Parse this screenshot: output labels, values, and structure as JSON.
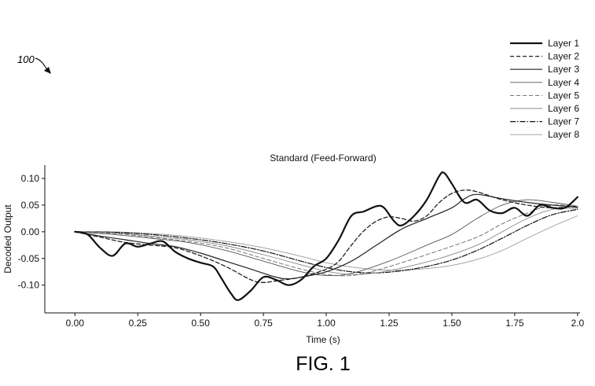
{
  "figure": {
    "reference_numeral": "100",
    "caption": "FIG. 1"
  },
  "chart_data": {
    "type": "line",
    "title": "Standard (Feed-Forward)",
    "xlabel": "Time (s)",
    "ylabel": "Decoded Output",
    "xlim": [
      -0.12,
      2.01
    ],
    "ylim": [
      -0.152,
      0.125
    ],
    "xticks": [
      0.0,
      0.25,
      0.5,
      0.75,
      1.0,
      1.25,
      1.5,
      1.75,
      2.0
    ],
    "xtick_labels": [
      "0.00",
      "0.25",
      "0.50",
      "0.75",
      "1.00",
      "1.25",
      "1.50",
      "1.75",
      "2.0"
    ],
    "yticks": [
      0.1,
      0.05,
      0.0,
      -0.05,
      -0.1
    ],
    "ytick_labels": [
      "0.10",
      "0.05",
      "0.00",
      "-0.05",
      "-0.10"
    ],
    "grid": false,
    "legend": "top-right",
    "series": [
      {
        "name": "Layer 1",
        "style": "solid",
        "width": 2.2,
        "color": "#111111",
        "x": [
          0.0,
          0.05,
          0.1,
          0.15,
          0.2,
          0.25,
          0.3,
          0.35,
          0.4,
          0.45,
          0.5,
          0.55,
          0.58,
          0.62,
          0.65,
          0.7,
          0.75,
          0.8,
          0.85,
          0.9,
          0.95,
          1.0,
          1.05,
          1.1,
          1.15,
          1.2,
          1.23,
          1.27,
          1.3,
          1.35,
          1.4,
          1.45,
          1.47,
          1.5,
          1.55,
          1.6,
          1.65,
          1.7,
          1.75,
          1.8,
          1.85,
          1.9,
          1.95,
          2.0
        ],
        "y": [
          0.0,
          -0.005,
          -0.03,
          -0.045,
          -0.022,
          -0.028,
          -0.022,
          -0.018,
          -0.038,
          -0.05,
          -0.058,
          -0.065,
          -0.085,
          -0.115,
          -0.128,
          -0.11,
          -0.085,
          -0.09,
          -0.1,
          -0.09,
          -0.065,
          -0.05,
          -0.015,
          0.03,
          0.038,
          0.048,
          0.045,
          0.02,
          0.012,
          0.03,
          0.06,
          0.105,
          0.11,
          0.09,
          0.055,
          0.06,
          0.04,
          0.035,
          0.045,
          0.03,
          0.05,
          0.045,
          0.045,
          0.065
        ]
      },
      {
        "name": "Layer 2",
        "style": "dashed",
        "width": 1.3,
        "color": "#222222",
        "x": [
          0.0,
          0.1,
          0.2,
          0.3,
          0.4,
          0.5,
          0.6,
          0.7,
          0.75,
          0.8,
          0.9,
          1.0,
          1.05,
          1.1,
          1.15,
          1.2,
          1.25,
          1.3,
          1.35,
          1.4,
          1.45,
          1.5,
          1.55,
          1.6,
          1.7,
          1.8,
          1.9,
          2.0
        ],
        "y": [
          0.0,
          -0.01,
          -0.02,
          -0.025,
          -0.03,
          -0.045,
          -0.065,
          -0.09,
          -0.095,
          -0.092,
          -0.085,
          -0.07,
          -0.055,
          -0.025,
          0.002,
          0.02,
          0.028,
          0.025,
          0.02,
          0.03,
          0.055,
          0.072,
          0.078,
          0.075,
          0.06,
          0.05,
          0.045,
          0.048
        ]
      },
      {
        "name": "Layer 3",
        "style": "solid",
        "width": 1.2,
        "color": "#222222",
        "x": [
          0.0,
          0.1,
          0.2,
          0.3,
          0.4,
          0.5,
          0.6,
          0.7,
          0.8,
          0.85,
          0.9,
          1.0,
          1.1,
          1.2,
          1.3,
          1.4,
          1.5,
          1.55,
          1.6,
          1.7,
          1.8,
          1.9,
          2.0
        ],
        "y": [
          0.0,
          -0.008,
          -0.015,
          -0.022,
          -0.028,
          -0.04,
          -0.055,
          -0.07,
          -0.085,
          -0.088,
          -0.085,
          -0.075,
          -0.055,
          -0.025,
          0.005,
          0.025,
          0.045,
          0.062,
          0.07,
          0.062,
          0.055,
          0.05,
          0.046
        ]
      },
      {
        "name": "Layer 4",
        "style": "solid",
        "width": 0.9,
        "color": "#555555",
        "x": [
          0.0,
          0.15,
          0.3,
          0.45,
          0.6,
          0.75,
          0.9,
          1.0,
          1.1,
          1.25,
          1.4,
          1.5,
          1.6,
          1.7,
          1.8,
          1.9,
          2.0
        ],
        "y": [
          0.0,
          -0.005,
          -0.012,
          -0.02,
          -0.035,
          -0.055,
          -0.075,
          -0.082,
          -0.078,
          -0.055,
          -0.025,
          -0.005,
          0.025,
          0.05,
          0.06,
          0.055,
          0.048
        ]
      },
      {
        "name": "Layer 5",
        "style": "dashed",
        "width": 0.9,
        "color": "#666666",
        "x": [
          0.0,
          0.15,
          0.3,
          0.45,
          0.6,
          0.75,
          0.9,
          1.0,
          1.1,
          1.2,
          1.3,
          1.45,
          1.6,
          1.7,
          1.8,
          1.9,
          2.0
        ],
        "y": [
          0.0,
          -0.003,
          -0.01,
          -0.018,
          -0.03,
          -0.05,
          -0.07,
          -0.08,
          -0.082,
          -0.072,
          -0.058,
          -0.035,
          -0.01,
          0.015,
          0.035,
          0.05,
          0.046
        ]
      },
      {
        "name": "Layer 6",
        "style": "solid",
        "width": 0.9,
        "color": "#888888",
        "x": [
          0.0,
          0.15,
          0.3,
          0.45,
          0.6,
          0.75,
          0.9,
          1.0,
          1.1,
          1.2,
          1.3,
          1.45,
          1.6,
          1.7,
          1.8,
          1.9,
          2.0
        ],
        "y": [
          0.0,
          -0.002,
          -0.008,
          -0.015,
          -0.026,
          -0.043,
          -0.062,
          -0.074,
          -0.08,
          -0.077,
          -0.068,
          -0.05,
          -0.025,
          0.0,
          0.025,
          0.042,
          0.044
        ]
      },
      {
        "name": "Layer 7",
        "style": "dashdot",
        "width": 1.2,
        "color": "#111111",
        "x": [
          0.0,
          0.15,
          0.3,
          0.45,
          0.6,
          0.75,
          0.9,
          1.0,
          1.1,
          1.2,
          1.3,
          1.4,
          1.5,
          1.6,
          1.7,
          1.8,
          1.9,
          2.0
        ],
        "y": [
          0.0,
          -0.001,
          -0.005,
          -0.012,
          -0.022,
          -0.036,
          -0.055,
          -0.067,
          -0.075,
          -0.077,
          -0.073,
          -0.065,
          -0.053,
          -0.035,
          -0.012,
          0.012,
          0.032,
          0.042
        ]
      },
      {
        "name": "Layer 8",
        "style": "solid",
        "width": 0.9,
        "color": "#999999",
        "x": [
          0.0,
          0.15,
          0.3,
          0.45,
          0.6,
          0.75,
          0.9,
          1.0,
          1.1,
          1.2,
          1.3,
          1.4,
          1.5,
          1.6,
          1.7,
          1.8,
          1.9,
          2.0
        ],
        "y": [
          0.0,
          0.0,
          -0.003,
          -0.009,
          -0.018,
          -0.03,
          -0.046,
          -0.058,
          -0.066,
          -0.071,
          -0.072,
          -0.069,
          -0.063,
          -0.052,
          -0.035,
          -0.012,
          0.01,
          0.03
        ]
      }
    ]
  }
}
